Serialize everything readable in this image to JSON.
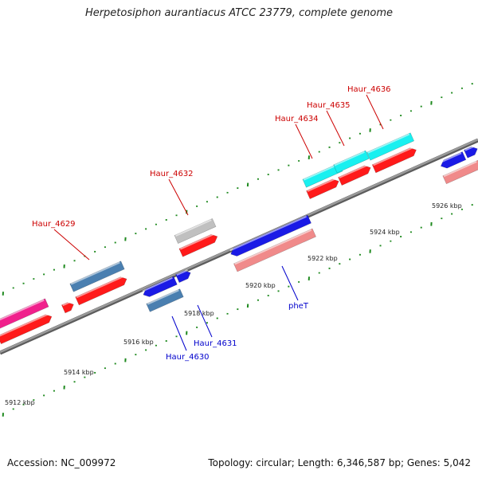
{
  "title": "Herpetosiphon aurantiacus ATCC 23779, complete genome",
  "footer": {
    "accession": "Accession: NC_009972",
    "topology": "Topology: circular; Length: 6,346,587 bp; Genes: 5,042"
  },
  "colors": {
    "backbone": "#8c8c8c",
    "tick": "#1f8a1f",
    "label_forward": "#cc0000",
    "label_reverse": "#0000cc",
    "gene_red": "#ff1a1a",
    "gene_blue": "#1a1ae6",
    "gene_steel": "#4a7fb0",
    "gene_cyan": "#19f0f0",
    "gene_grey": "#c0c0c0",
    "gene_pink": "#f08a8a",
    "gene_magenta": "#f0208c"
  },
  "ticks": [
    {
      "label": "5912 kbp"
    },
    {
      "label": "5914 kbp"
    },
    {
      "label": "5916 kbp"
    },
    {
      "label": "5918 kbp"
    },
    {
      "label": "5920 kbp"
    },
    {
      "label": "5922 kbp"
    },
    {
      "label": "5924 kbp"
    },
    {
      "label": "5926 kbp"
    }
  ],
  "gene_labels": {
    "forward": [
      "Haur_4629",
      "Haur_4632",
      "Haur_4634",
      "Haur_4635",
      "Haur_4636"
    ],
    "reverse": [
      "Haur_4630",
      "Haur_4631",
      "pheT"
    ]
  }
}
